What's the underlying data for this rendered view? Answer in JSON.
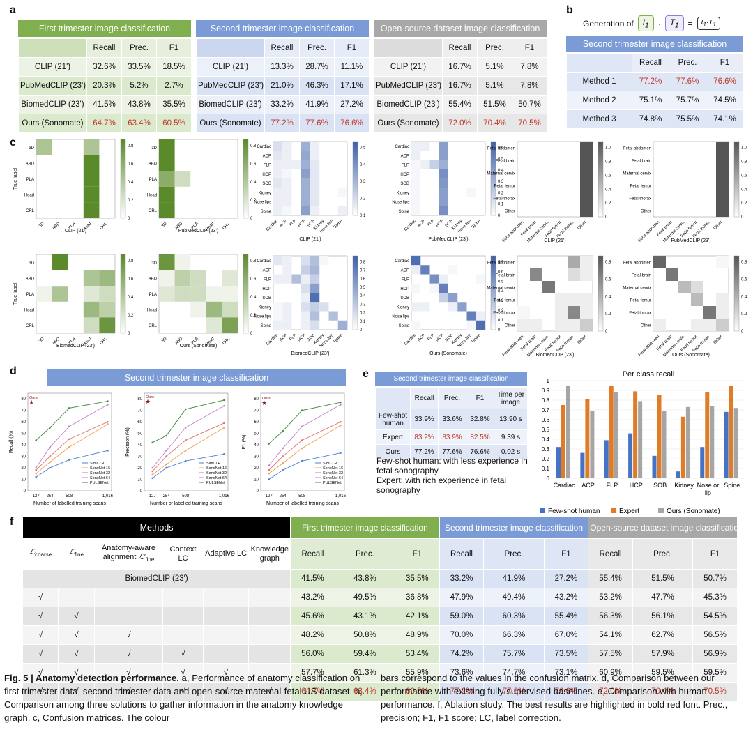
{
  "fig": "Fig. 5",
  "panel_labels": [
    "a",
    "b",
    "c",
    "d",
    "e",
    "f"
  ],
  "a": {
    "cols": [
      "Recall",
      "Prec.",
      "F1"
    ],
    "tables": [
      {
        "title": "First trimester image classification",
        "color": "#7faf4e",
        "rows": [
          {
            "name": "CLIP (21')",
            "v": [
              "32.6%",
              "33.5%",
              "18.5%"
            ]
          },
          {
            "name": "PubMedCLIP (23')",
            "v": [
              "20.3%",
              "5.2%",
              "2.7%"
            ]
          },
          {
            "name": "BiomedCLIP (23')",
            "v": [
              "41.5%",
              "43.8%",
              "35.5%"
            ]
          },
          {
            "name": "Ours (Sonomate)",
            "v": [
              "64.7%",
              "63.4%",
              "60.5%"
            ]
          }
        ]
      },
      {
        "title": "Second trimester image classification",
        "color": "#7b9bd6",
        "rows": [
          {
            "name": "CLIP (21')",
            "v": [
              "13.3%",
              "28.7%",
              "11.1%"
            ]
          },
          {
            "name": "PubMedCLIP (23')",
            "v": [
              "21.0%",
              "46.3%",
              "17.1%"
            ]
          },
          {
            "name": "BiomedCLIP (23')",
            "v": [
              "33.2%",
              "41.9%",
              "27.2%"
            ]
          },
          {
            "name": "Ours (Sonomate)",
            "v": [
              "77.2%",
              "77.6%",
              "76.6%"
            ]
          }
        ]
      },
      {
        "title": "Open-source dataset image classification",
        "color": "#a8a8a8",
        "rows": [
          {
            "name": "CLIP (21')",
            "v": [
              "16.7%",
              "5.1%",
              "7.8%"
            ]
          },
          {
            "name": "PubMedCLIP (23')",
            "v": [
              "16.7%",
              "5.1%",
              "7.8%"
            ]
          },
          {
            "name": "BiomedCLIP (23')",
            "v": [
              "55.4%",
              "51.5%",
              "50.7%"
            ]
          },
          {
            "name": "Ours (Sonomate)",
            "v": [
              "72.0%",
              "70.4%",
              "70.5%"
            ]
          }
        ]
      }
    ]
  },
  "b": {
    "generation": "Generation of",
    "I": "I",
    "T": "T",
    "sub": "1",
    "eq": "=",
    "title": "Second trimester image classification",
    "rows": [
      {
        "name": "Method 1",
        "v": [
          "77.2%",
          "77.6%",
          "76.6%"
        ]
      },
      {
        "name": "Method 2",
        "v": [
          "75.1%",
          "75.7%",
          "74.5%"
        ]
      },
      {
        "name": "Method 3",
        "v": [
          "74.8%",
          "75.5%",
          "74.1%"
        ]
      }
    ]
  },
  "c": {
    "first_labels": [
      "3D",
      "ABD",
      "PLA",
      "Head",
      "CRL"
    ],
    "second_labels": [
      "Cardiac",
      "ACP",
      "FLP",
      "HCP",
      "SOB",
      "Kidney",
      "Nose lips",
      "Spine"
    ],
    "open_labels": [
      "Fetal abdomen",
      "Fetal brain",
      "Maternal cervix",
      "Fetal femur",
      "Fetal thorax",
      "Other"
    ],
    "ylabel": "True label",
    "captions": [
      "CLIP (21')",
      "PubMedCLIP (23')",
      "BiomedCLIP (23')",
      "Ours (Sonomate)"
    ],
    "first_ticks": [
      "0",
      "0.2",
      "0.4",
      "0.6",
      "0.8"
    ],
    "second_ticks_a": [
      "0.1",
      "0.2",
      "0.3",
      "0.4",
      "0.5"
    ],
    "second_ticks_b": [
      "0",
      "0.1",
      "0.2",
      "0.3",
      "0.4",
      "0.5",
      "0.6",
      "0.7",
      "0.8"
    ],
    "open_ticks_a": [
      "0",
      "0.2",
      "0.4",
      "0.6",
      "0.8",
      "1.0"
    ],
    "open_ticks_b": [
      "0",
      "0.2",
      "0.4",
      "0.6",
      "0.8"
    ]
  },
  "d": {
    "title": "Second trimester image classification",
    "xlabel": "Number of labelled training scans",
    "ylabels": [
      "Recall (%)",
      "Precision (%)",
      "F1 (%)"
    ],
    "xticks": [
      "127",
      "254",
      "508",
      "1,016"
    ],
    "yticks": [
      "0",
      "10",
      "20",
      "30",
      "40",
      "50",
      "60",
      "70",
      "80"
    ],
    "ours": "Ours",
    "ours_values": [
      77.2,
      77.6,
      76.6
    ],
    "series": [
      {
        "name": "SimCLR",
        "color": "#4a7fd1"
      },
      {
        "name": "SonoNet 16",
        "color": "#f0a04b"
      },
      {
        "name": "SonoNet 32",
        "color": "#e07070"
      },
      {
        "name": "SonoNet 64",
        "color": "#c080d0"
      },
      {
        "name": "PULSENet",
        "color": "#3a8a3a"
      }
    ]
  },
  "e": {
    "title": "Second trimester image classification",
    "cols": [
      "Recall",
      "Prec.",
      "F1",
      "Time per image"
    ],
    "rows": [
      {
        "name": "Few-shot human",
        "v": [
          "33.9%",
          "33.6%",
          "32.8%",
          "13.90 s"
        ]
      },
      {
        "name": "Expert",
        "v": [
          "83.2%",
          "83.9%",
          "82.5%",
          "9.39 s"
        ]
      },
      {
        "name": "Ours",
        "v": [
          "77.2%",
          "77.6%",
          "76.6%",
          "0.02 s"
        ]
      }
    ],
    "note1": "Few-shot human: with less experience in fetal sonography",
    "note2": "Expert: with rich experience in fetal sonography",
    "chart_data": {
      "type": "bar",
      "title": "Per class recall",
      "categories": [
        "Cardiac",
        "ACP",
        "FLP",
        "HCP",
        "SOB",
        "Kidney",
        "Nose or lip",
        "Spine"
      ],
      "series": [
        {
          "name": "Few-shot human",
          "color": "#4472c4",
          "values": [
            0.32,
            0.26,
            0.39,
            0.46,
            0.23,
            0.07,
            0.32,
            0.68
          ]
        },
        {
          "name": "Expert",
          "color": "#e07b28",
          "values": [
            0.75,
            0.81,
            0.95,
            0.89,
            0.85,
            0.63,
            0.88,
            0.95
          ]
        },
        {
          "name": "Ours (Sonomate)",
          "color": "#a5a5a5",
          "values": [
            0.95,
            0.69,
            0.88,
            0.79,
            0.69,
            0.73,
            0.74,
            0.72
          ]
        }
      ],
      "ylim": [
        0,
        1
      ],
      "yticks": [
        "0",
        "0.1",
        "0.2",
        "0.3",
        "0.4",
        "0.5",
        "0.6",
        "0.7",
        "0.8",
        "0.9",
        "1"
      ]
    }
  },
  "f": {
    "methods": "Methods",
    "baseline": "BiomedCLIP (23')",
    "check": "√",
    "col_headers": [
      "coarse",
      "fine",
      "Anatomy-aware alignment",
      "Context LC",
      "Adaptive LC",
      "Knowledge graph"
    ],
    "sections": [
      {
        "title": "First trimester image classification",
        "color": "#7faf4e"
      },
      {
        "title": "Second trimester image classification",
        "color": "#7b9bd6"
      },
      {
        "title": "Open-source dataset image classification",
        "color": "#a8a8a8"
      }
    ],
    "metric_cols": [
      "Recall",
      "Prec.",
      "F1"
    ],
    "rows": [
      {
        "checks": [
          0,
          0,
          0,
          0,
          0,
          0
        ],
        "v": [
          "41.5%",
          "43.8%",
          "35.5%",
          "33.2%",
          "41.9%",
          "27.2%",
          "55.4%",
          "51.5%",
          "50.7%"
        ]
      },
      {
        "checks": [
          1,
          0,
          0,
          0,
          0,
          0
        ],
        "v": [
          "43.2%",
          "49.5%",
          "36.8%",
          "47.9%",
          "49.4%",
          "43.2%",
          "53.2%",
          "47.7%",
          "45.3%"
        ]
      },
      {
        "checks": [
          1,
          1,
          0,
          0,
          0,
          0
        ],
        "v": [
          "45.6%",
          "43.1%",
          "42.1%",
          "59.0%",
          "60.3%",
          "55.4%",
          "56.3%",
          "56.1%",
          "54.5%"
        ]
      },
      {
        "checks": [
          1,
          1,
          1,
          0,
          0,
          0
        ],
        "v": [
          "48.2%",
          "50.8%",
          "48.9%",
          "70.0%",
          "66.3%",
          "67.0%",
          "54.1%",
          "62.7%",
          "56.5%"
        ]
      },
      {
        "checks": [
          1,
          1,
          1,
          1,
          0,
          0
        ],
        "v": [
          "56.0%",
          "59.4%",
          "53.4%",
          "74.2%",
          "75.7%",
          "73.5%",
          "57.5%",
          "57.9%",
          "56.9%"
        ]
      },
      {
        "checks": [
          1,
          1,
          1,
          1,
          1,
          0
        ],
        "v": [
          "57.7%",
          "61.3%",
          "55.9%",
          "73.6%",
          "74.7%",
          "73.1%",
          "60.9%",
          "59.5%",
          "59.5%"
        ]
      },
      {
        "checks": [
          1,
          1,
          1,
          1,
          1,
          1
        ],
        "v": [
          "64.7%",
          "63.4%",
          "60.5%",
          "77.2%",
          "77.6%",
          "76.6%",
          "72.0%",
          "70.4%",
          "70.5%"
        ]
      }
    ]
  },
  "caption": {
    "lead": "Fig. 5 | Anatomy detection performance.",
    "left": " a, Performance of anatomy classification on first trimester data, second trimester data and open-source maternal-fetal US dataset. b, Comparison among three solutions to gather information in the anatomy knowledge graph. c, Confusion matrices. The colour",
    "right": "bars correspond to the values in the confusion matrix. d, Comparison between our performance with existing fully supervised baselines. e, Comparison with human performance. f, Ablation study. The best results are highlighted in bold red font. Prec., precision; F1, F1 score; LC, label correction."
  }
}
